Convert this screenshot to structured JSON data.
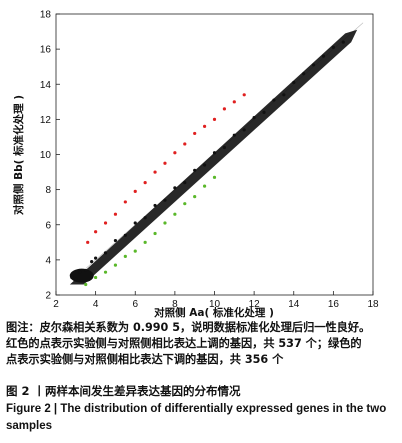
{
  "chart_data": {
    "type": "scatter",
    "xlabel": "对照侧 Aa( 标准化处理 )",
    "ylabel": "对照侧 Bb( 标准化处理 )",
    "xlim": [
      2,
      18
    ],
    "ylim": [
      2,
      18
    ],
    "xticks": [
      2,
      4,
      6,
      8,
      10,
      12,
      14,
      16,
      18
    ],
    "yticks": [
      2,
      4,
      6,
      8,
      10,
      12,
      14,
      16,
      18
    ],
    "series": [
      {
        "name": "",
        "color": "#111111",
        "points": [
          [
            2.8,
            3.0
          ],
          [
            3.0,
            2.9
          ],
          [
            3.2,
            3.3
          ],
          [
            3.5,
            3.4
          ],
          [
            3.8,
            3.9
          ],
          [
            4.0,
            4.1
          ],
          [
            4.5,
            4.4
          ],
          [
            5.0,
            5.1
          ],
          [
            5.5,
            5.4
          ],
          [
            6.0,
            6.1
          ],
          [
            6.5,
            6.4
          ],
          [
            7.0,
            7.1
          ],
          [
            7.5,
            7.4
          ],
          [
            8.0,
            8.1
          ],
          [
            8.5,
            8.4
          ],
          [
            9.0,
            9.1
          ],
          [
            9.5,
            9.4
          ],
          [
            10.0,
            10.1
          ],
          [
            10.5,
            10.4
          ],
          [
            11.0,
            11.1
          ],
          [
            11.5,
            11.4
          ],
          [
            12.0,
            12.1
          ],
          [
            12.5,
            12.4
          ],
          [
            13.0,
            13.1
          ],
          [
            13.5,
            13.4
          ],
          [
            14.0,
            14.1
          ],
          [
            14.5,
            14.6
          ],
          [
            15.0,
            15.1
          ],
          [
            15.5,
            15.6
          ],
          [
            16.0,
            16.1
          ],
          [
            16.5,
            16.4
          ]
        ]
      },
      {
        "name": "",
        "color": "#e02020",
        "points": [
          [
            3.6,
            5.0
          ],
          [
            4.0,
            5.6
          ],
          [
            4.5,
            6.1
          ],
          [
            5.0,
            6.6
          ],
          [
            5.5,
            7.3
          ],
          [
            6.0,
            7.9
          ],
          [
            6.5,
            8.4
          ],
          [
            7.0,
            9.0
          ],
          [
            7.5,
            9.5
          ],
          [
            8.0,
            10.1
          ],
          [
            8.5,
            10.6
          ],
          [
            9.0,
            11.2
          ],
          [
            9.5,
            11.6
          ],
          [
            10.0,
            12.0
          ],
          [
            10.5,
            12.6
          ],
          [
            11.0,
            13.0
          ],
          [
            11.5,
            13.4
          ]
        ]
      },
      {
        "name": "",
        "color": "#5ab82a",
        "points": [
          [
            3.5,
            2.6
          ],
          [
            4.0,
            3.0
          ],
          [
            4.5,
            3.3
          ],
          [
            5.0,
            3.7
          ],
          [
            5.5,
            4.2
          ],
          [
            6.0,
            4.5
          ],
          [
            6.5,
            5.0
          ],
          [
            7.0,
            5.5
          ],
          [
            7.5,
            6.1
          ],
          [
            8.0,
            6.6
          ],
          [
            8.5,
            7.2
          ],
          [
            9.0,
            7.6
          ],
          [
            9.5,
            8.2
          ],
          [
            10.0,
            8.7
          ]
        ]
      }
    ]
  },
  "caption": {
    "note_line1": "图注：皮尔森相关系数为 0.990 5，说明数据标准化处理后归一性良好。",
    "note_line2": "红色的点表示实验侧与对照侧相比表达上调的基因，共 537 个；绿色的",
    "note_line3": "点表示实验侧与对照侧相比表达下调的基因，共 356 个",
    "fig_zh": "图 2  丨两样本间发生差异表达基因的分布情况",
    "fig_en": "Figure 2  |   The distribution of differentially expressed genes in the two samples"
  }
}
